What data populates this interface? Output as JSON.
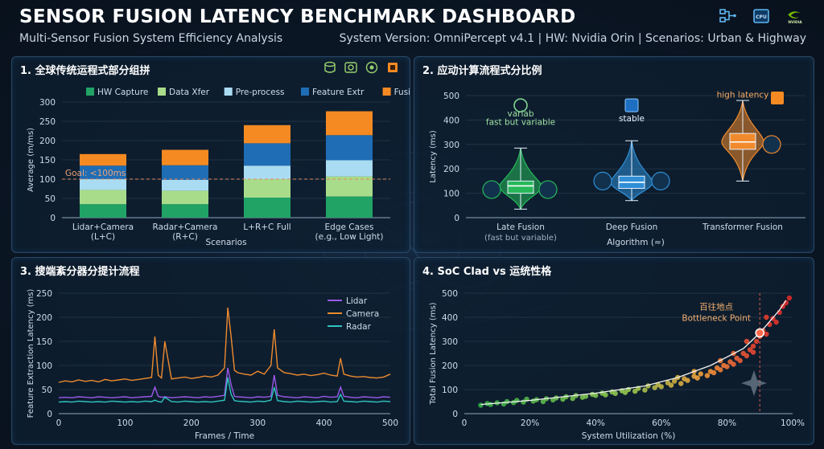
{
  "header": {
    "title": "SENSOR FUSION LATENCY BENCHMARK DASHBOARD",
    "subtitle": "Multi-Sensor Fusion System Efficiency Analysis",
    "system_info": "System Version: OmniPercept v4.1 | HW: Nvidia Orin | Scenarios: Urban & Highway",
    "icons": [
      "sensor-network-icon",
      "cpu-icon",
      "nvidia-logo-icon"
    ],
    "logo_text": "NVIDIA"
  },
  "panel1": {
    "title": "1. 全球传统运程式部分组拼",
    "icons": [
      "database-icon",
      "radar-icon",
      "camera-lens-icon",
      "chip-icon"
    ],
    "goal_label": "Goal: <100ms",
    "chart_data": {
      "type": "bar",
      "stacked": true,
      "categories": [
        "Lidar+Camera\n(L+C)",
        "Radar+Camera\n(R+C)",
        "L+R+C Full",
        "Edge Cases\n(e.g., Low Light)"
      ],
      "series": [
        {
          "name": "HW Capture",
          "color": "#21a366",
          "values": [
            35,
            35,
            52,
            55
          ]
        },
        {
          "name": "Data Xfer",
          "color": "#a8dc8a",
          "values": [
            37,
            35,
            48,
            52
          ]
        },
        {
          "name": "Pre-process",
          "color": "#a9dcf2",
          "values": [
            28,
            28,
            35,
            42
          ]
        },
        {
          "name": "Feature Extr",
          "color": "#1f6db5",
          "values": [
            35,
            38,
            58,
            65
          ]
        },
        {
          "name": "Fusion Algo",
          "color": "#f58a22",
          "values": [
            30,
            40,
            47,
            62
          ]
        }
      ],
      "xlabel": "Scenarios",
      "ylabel": "Average (m/ms)",
      "ylim": [
        0,
        300
      ],
      "yticks": [
        0,
        50,
        100,
        150,
        200,
        250,
        300
      ],
      "goal_value": 100,
      "legend": "top"
    }
  },
  "panel2": {
    "title": "2. 应动计算流程式分比例",
    "chart_data": {
      "type": "box",
      "categories": [
        "Late Fusion",
        "Deep Fusion",
        "Transformer Fusion"
      ],
      "category_sublabels": [
        "(fast but variable)",
        "",
        ""
      ],
      "boxes": [
        {
          "name": "Late Fusion",
          "color": "#27b85a",
          "min": 35,
          "q1": 100,
          "median": 130,
          "q3": 150,
          "max": 285
        },
        {
          "name": "Deep Fusion",
          "color": "#2f8ed6",
          "min": 70,
          "q1": 120,
          "median": 145,
          "q3": 170,
          "max": 315
        },
        {
          "name": "Transformer Fusion",
          "color": "#f08a2c",
          "min": 150,
          "q1": 280,
          "median": 310,
          "q3": 345,
          "max": 480
        }
      ],
      "annotations": [
        "variab",
        "fast but variable",
        "stable",
        "high latency"
      ],
      "xlabel": "Algorithm (≈)",
      "ylabel": "Latency (ms)",
      "ylim": [
        0,
        500
      ],
      "yticks": [
        0,
        100,
        200,
        300,
        400,
        500
      ]
    }
  },
  "panel3": {
    "title": "3. 搜端紊分器分提计流程",
    "chart_data": {
      "type": "line",
      "x": [
        0,
        10,
        20,
        30,
        40,
        50,
        60,
        70,
        80,
        90,
        100,
        110,
        120,
        130,
        140,
        145,
        150,
        155,
        160,
        170,
        180,
        190,
        200,
        210,
        220,
        230,
        240,
        250,
        255,
        260,
        265,
        270,
        280,
        290,
        300,
        310,
        320,
        325,
        330,
        340,
        350,
        360,
        370,
        380,
        390,
        400,
        410,
        420,
        425,
        430,
        440,
        450,
        460,
        470,
        480,
        490,
        500
      ],
      "series": [
        {
          "name": "Lidar",
          "color": "#9b59e8",
          "values": [
            33,
            34,
            33,
            35,
            34,
            33,
            35,
            34,
            33,
            34,
            35,
            33,
            34,
            35,
            36,
            55,
            36,
            34,
            35,
            33,
            34,
            35,
            34,
            33,
            35,
            34,
            36,
            38,
            95,
            60,
            36,
            35,
            34,
            33,
            35,
            34,
            36,
            80,
            38,
            35,
            34,
            33,
            35,
            34,
            33,
            36,
            34,
            35,
            55,
            36,
            34,
            33,
            35,
            34,
            33,
            35,
            34
          ]
        },
        {
          "name": "Camera",
          "color": "#ee8a2e",
          "values": [
            65,
            68,
            66,
            70,
            67,
            69,
            66,
            71,
            68,
            70,
            72,
            69,
            71,
            73,
            75,
            160,
            80,
            74,
            150,
            72,
            74,
            76,
            73,
            75,
            78,
            76,
            80,
            95,
            220,
            160,
            90,
            85,
            82,
            80,
            88,
            82,
            100,
            175,
            95,
            85,
            83,
            80,
            82,
            79,
            81,
            84,
            80,
            78,
            115,
            82,
            78,
            76,
            77,
            75,
            74,
            76,
            82
          ]
        },
        {
          "name": "Radar",
          "color": "#2fc4c0",
          "values": [
            24,
            25,
            24,
            26,
            25,
            24,
            25,
            24,
            26,
            25,
            24,
            25,
            24,
            26,
            25,
            28,
            25,
            24,
            34,
            25,
            24,
            26,
            25,
            24,
            25,
            24,
            26,
            28,
            75,
            40,
            27,
            26,
            25,
            24,
            26,
            25,
            28,
            55,
            27,
            25,
            24,
            26,
            25,
            24,
            25,
            26,
            24,
            25,
            40,
            26,
            25,
            24,
            26,
            25,
            24,
            26,
            25
          ]
        }
      ],
      "xlabel": "Frames / Time",
      "ylabel": "Feature Extraction Latency (ms)",
      "xlim": [
        0,
        500
      ],
      "ylim": [
        0,
        250
      ],
      "xticks": [
        0,
        100,
        200,
        300,
        400,
        500
      ],
      "yticks": [
        0,
        50,
        100,
        150,
        200,
        250
      ],
      "legend": "top-right"
    }
  },
  "panel4": {
    "title": "4. SoC Clad vs 运统性格",
    "bottleneck_label_cn": "百往地点",
    "bottleneck_label_en": "Bottleneck Point",
    "chart_data": {
      "type": "scatter",
      "xlabel": "System Utilization (%)",
      "ylabel": "Total Fusion Latency (ms)",
      "xlim": [
        0,
        100
      ],
      "ylim": [
        0,
        500
      ],
      "xticks": [
        "0",
        "20%",
        "40%",
        "60%",
        "80%",
        "100%"
      ],
      "yticks": [
        0,
        100,
        200,
        300,
        400,
        500
      ],
      "bottleneck": {
        "x": 90,
        "y": 335
      },
      "trend": [
        [
          5,
          38
        ],
        [
          20,
          55
        ],
        [
          40,
          85
        ],
        [
          55,
          115
        ],
        [
          65,
          150
        ],
        [
          75,
          200
        ],
        [
          85,
          270
        ],
        [
          90,
          335
        ],
        [
          96,
          430
        ],
        [
          98,
          470
        ]
      ],
      "points": [
        [
          5,
          35
        ],
        [
          7,
          42
        ],
        [
          8,
          38
        ],
        [
          10,
          45
        ],
        [
          12,
          40
        ],
        [
          13,
          50
        ],
        [
          15,
          46
        ],
        [
          16,
          55
        ],
        [
          18,
          48
        ],
        [
          19,
          60
        ],
        [
          21,
          52
        ],
        [
          22,
          58
        ],
        [
          24,
          50
        ],
        [
          25,
          62
        ],
        [
          27,
          57
        ],
        [
          28,
          65
        ],
        [
          30,
          60
        ],
        [
          31,
          70
        ],
        [
          33,
          63
        ],
        [
          34,
          75
        ],
        [
          36,
          68
        ],
        [
          37,
          72
        ],
        [
          39,
          80
        ],
        [
          40,
          76
        ],
        [
          42,
          85
        ],
        [
          43,
          78
        ],
        [
          45,
          90
        ],
        [
          46,
          84
        ],
        [
          48,
          95
        ],
        [
          49,
          88
        ],
        [
          50,
          100
        ],
        [
          52,
          93
        ],
        [
          53,
          105
        ],
        [
          55,
          98
        ],
        [
          56,
          115
        ],
        [
          58,
          108
        ],
        [
          59,
          120
        ],
        [
          60,
          112
        ],
        [
          62,
          128
        ],
        [
          63,
          118
        ],
        [
          64,
          135
        ],
        [
          66,
          125
        ],
        [
          67,
          145
        ],
        [
          68,
          138
        ],
        [
          70,
          155
        ],
        [
          71,
          148
        ],
        [
          72,
          165
        ],
        [
          74,
          158
        ],
        [
          75,
          175
        ],
        [
          76,
          170
        ],
        [
          77,
          190
        ],
        [
          78,
          182
        ],
        [
          79,
          200
        ],
        [
          80,
          195
        ],
        [
          81,
          215
        ],
        [
          82,
          205
        ],
        [
          83,
          230
        ],
        [
          84,
          220
        ],
        [
          85,
          250
        ],
        [
          86,
          240
        ],
        [
          87,
          265
        ],
        [
          88,
          280
        ],
        [
          89,
          300
        ],
        [
          90,
          320
        ],
        [
          91,
          345
        ],
        [
          92,
          330
        ],
        [
          93,
          370
        ],
        [
          94,
          395
        ],
        [
          95,
          380
        ],
        [
          96,
          420
        ],
        [
          97,
          445
        ],
        [
          98,
          460
        ],
        [
          99,
          480
        ],
        [
          82,
          250
        ],
        [
          78,
          220
        ],
        [
          86,
          300
        ],
        [
          88,
          255
        ],
        [
          92,
          400
        ],
        [
          70,
          175
        ],
        [
          65,
          150
        ]
      ]
    }
  }
}
